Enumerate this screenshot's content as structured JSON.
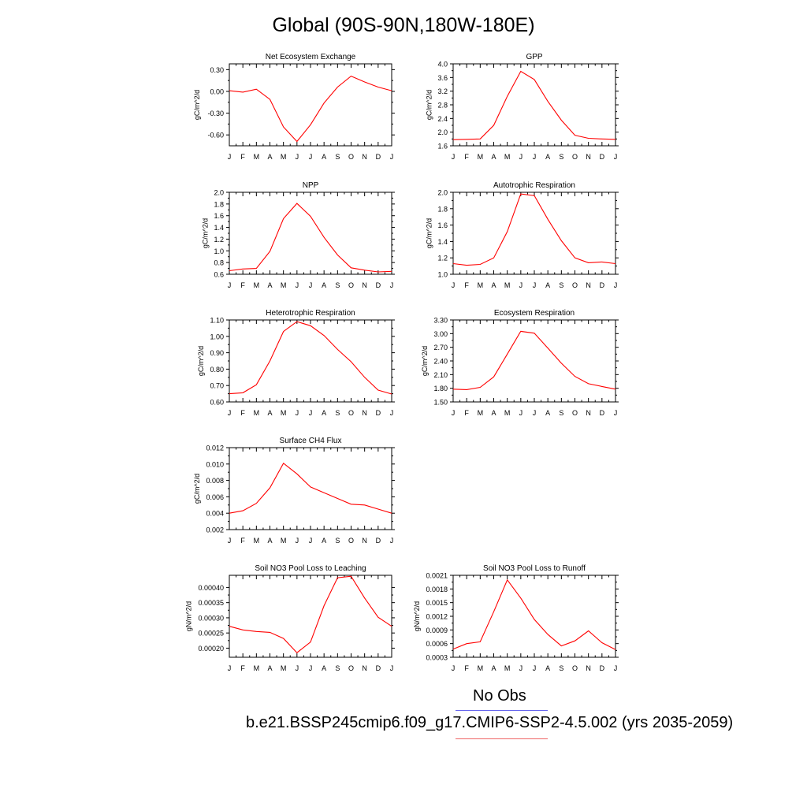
{
  "figure": {
    "title": "Global (90S-90N,180W-180E)",
    "legend": {
      "obs_label": "No Obs",
      "model_label": "b.e21.BSSP245cmip6.f09_g17.CMIP6-SSP2-4.5.002 (yrs 2035-2059)",
      "obs_color": "#6666ee",
      "model_color": "#ee6666"
    },
    "line_color": "#ff0000"
  },
  "chart_data": [
    {
      "type": "line",
      "title": "Net Ecosystem Exchange",
      "ylabel": "gC/m^2/d",
      "x": [
        "J",
        "F",
        "M",
        "A",
        "M",
        "J",
        "J",
        "A",
        "S",
        "O",
        "N",
        "D",
        "J"
      ],
      "ylim": [
        -0.75,
        0.38
      ],
      "yticks": [
        "0.30",
        "0.00",
        "-0.30",
        "-0.60"
      ],
      "ytick_values": [
        0.3,
        0.0,
        -0.3,
        -0.6
      ],
      "series": [
        {
          "values": [
            0.01,
            -0.01,
            0.03,
            -0.11,
            -0.49,
            -0.69,
            -0.46,
            -0.16,
            0.06,
            0.21,
            0.13,
            0.06,
            0.01
          ]
        }
      ]
    },
    {
      "type": "line",
      "title": "GPP",
      "ylabel": "gC/m^2/d",
      "x": [
        "J",
        "F",
        "M",
        "A",
        "M",
        "J",
        "J",
        "A",
        "S",
        "O",
        "N",
        "D",
        "J"
      ],
      "ylim": [
        1.6,
        4.0
      ],
      "yticks": [
        "1.6",
        "2.0",
        "2.4",
        "2.8",
        "3.2",
        "3.6",
        "4.0"
      ],
      "ytick_values": [
        1.6,
        2.0,
        2.4,
        2.8,
        3.2,
        3.6,
        4.0
      ],
      "series": [
        {
          "values": [
            1.78,
            1.79,
            1.8,
            2.2,
            3.05,
            3.78,
            3.54,
            2.9,
            2.35,
            1.91,
            1.82,
            1.8,
            1.79
          ]
        }
      ]
    },
    {
      "type": "line",
      "title": "NPP",
      "ylabel": "gC/m^2/d",
      "x": [
        "J",
        "F",
        "M",
        "A",
        "M",
        "J",
        "J",
        "A",
        "S",
        "O",
        "N",
        "D",
        "J"
      ],
      "ylim": [
        0.6,
        2.0
      ],
      "yticks": [
        "0.6",
        "0.8",
        "1.0",
        "1.2",
        "1.4",
        "1.6",
        "1.8",
        "2.0"
      ],
      "ytick_values": [
        0.6,
        0.8,
        1.0,
        1.2,
        1.4,
        1.6,
        1.8,
        2.0
      ],
      "series": [
        {
          "values": [
            0.66,
            0.69,
            0.7,
            0.99,
            1.55,
            1.81,
            1.59,
            1.23,
            0.93,
            0.71,
            0.67,
            0.64,
            0.65
          ]
        }
      ]
    },
    {
      "type": "line",
      "title": "Autotrophic Respiration",
      "ylabel": "gC/m^2/d",
      "x": [
        "J",
        "F",
        "M",
        "A",
        "M",
        "J",
        "J",
        "A",
        "S",
        "O",
        "N",
        "D",
        "J"
      ],
      "ylim": [
        1.0,
        2.0
      ],
      "yticks": [
        "1.0",
        "1.2",
        "1.4",
        "1.6",
        "1.8",
        "2.0"
      ],
      "ytick_values": [
        1.0,
        1.2,
        1.4,
        1.6,
        1.8,
        2.0
      ],
      "series": [
        {
          "values": [
            1.13,
            1.11,
            1.12,
            1.2,
            1.52,
            1.98,
            1.96,
            1.67,
            1.41,
            1.2,
            1.14,
            1.15,
            1.13
          ]
        }
      ]
    },
    {
      "type": "line",
      "title": "Heterotrophic Respiration",
      "ylabel": "gC/m^2/d",
      "x": [
        "J",
        "F",
        "M",
        "A",
        "M",
        "J",
        "J",
        "A",
        "S",
        "O",
        "N",
        "D",
        "J"
      ],
      "ylim": [
        0.6,
        1.1
      ],
      "yticks": [
        "0.60",
        "0.70",
        "0.80",
        "0.90",
        "1.00",
        "1.10"
      ],
      "ytick_values": [
        0.6,
        0.7,
        0.8,
        0.9,
        1.0,
        1.1
      ],
      "series": [
        {
          "values": [
            0.65,
            0.656,
            0.705,
            0.85,
            1.03,
            1.09,
            1.065,
            1.005,
            0.92,
            0.845,
            0.75,
            0.672,
            0.648
          ]
        }
      ]
    },
    {
      "type": "line",
      "title": "Ecosystem Respiration",
      "ylabel": "gC/m^2/d",
      "x": [
        "J",
        "F",
        "M",
        "A",
        "M",
        "J",
        "J",
        "A",
        "S",
        "O",
        "N",
        "D",
        "J"
      ],
      "ylim": [
        1.5,
        3.3
      ],
      "yticks": [
        "1.50",
        "1.80",
        "2.10",
        "2.40",
        "2.70",
        "3.00",
        "3.30"
      ],
      "ytick_values": [
        1.5,
        1.8,
        2.1,
        2.4,
        2.7,
        3.0,
        3.3
      ],
      "series": [
        {
          "values": [
            1.78,
            1.77,
            1.82,
            2.05,
            2.55,
            3.05,
            3.01,
            2.68,
            2.35,
            2.06,
            1.9,
            1.84,
            1.78
          ]
        }
      ]
    },
    {
      "type": "line",
      "title": "Surface CH4 Flux",
      "ylabel": "gC/m^2/d",
      "x": [
        "J",
        "F",
        "M",
        "A",
        "M",
        "J",
        "J",
        "A",
        "S",
        "O",
        "N",
        "D",
        "J"
      ],
      "ylim": [
        0.002,
        0.012
      ],
      "yticks": [
        "0.002",
        "0.004",
        "0.006",
        "0.008",
        "0.010",
        "0.012"
      ],
      "ytick_values": [
        0.002,
        0.004,
        0.006,
        0.008,
        0.01,
        0.012
      ],
      "series": [
        {
          "values": [
            0.004,
            0.0043,
            0.0052,
            0.0071,
            0.0101,
            0.0088,
            0.0072,
            0.0065,
            0.0058,
            0.0051,
            0.005,
            0.0045,
            0.004
          ]
        }
      ]
    },
    {
      "type": "line",
      "title": "Soil NO3 Pool Loss to Leaching",
      "ylabel": "gN/m^2/d",
      "x": [
        "J",
        "F",
        "M",
        "A",
        "M",
        "J",
        "J",
        "A",
        "S",
        "O",
        "N",
        "D",
        "J"
      ],
      "ylim": [
        0.00017,
        0.00044
      ],
      "yticks": [
        "0.00020",
        "0.00025",
        "0.00030",
        "0.00035",
        "0.00040"
      ],
      "ytick_values": [
        0.0002,
        0.00025,
        0.0003,
        0.00035,
        0.0004
      ],
      "series": [
        {
          "values": [
            0.000272,
            0.00026,
            0.000255,
            0.000252,
            0.000232,
            0.000185,
            0.00022,
            0.00034,
            0.000432,
            0.000437,
            0.000365,
            0.000302,
            0.000272
          ]
        }
      ]
    },
    {
      "type": "line",
      "title": "Soil NO3 Pool Loss to Runoff",
      "ylabel": "gN/m^2/d",
      "x": [
        "J",
        "F",
        "M",
        "A",
        "M",
        "J",
        "J",
        "A",
        "S",
        "O",
        "N",
        "D",
        "J"
      ],
      "ylim": [
        0.0003,
        0.0021
      ],
      "yticks": [
        "0.0003",
        "0.0006",
        "0.0009",
        "0.0012",
        "0.0015",
        "0.0018",
        "0.0021"
      ],
      "ytick_values": [
        0.0003,
        0.0006,
        0.0009,
        0.0012,
        0.0015,
        0.0018,
        0.0021
      ],
      "series": [
        {
          "values": [
            0.00048,
            0.0006,
            0.00064,
            0.0013,
            0.002,
            0.0016,
            0.00113,
            0.0008,
            0.00055,
            0.00066,
            0.00088,
            0.00062,
            0.00047
          ]
        }
      ]
    }
  ]
}
